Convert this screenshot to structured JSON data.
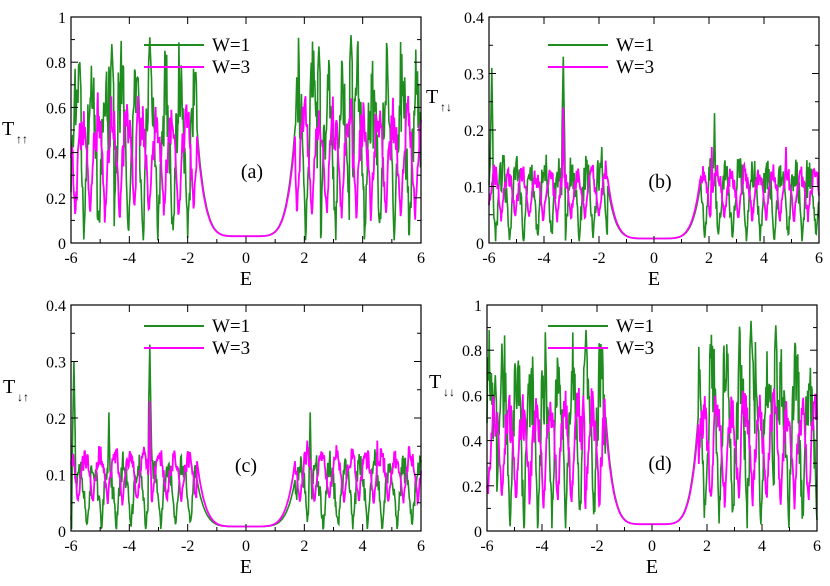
{
  "chart_data": [
    {
      "type": "line",
      "panel_label": "(a)",
      "ylabel_main": "T",
      "ylabel_sub": "↑↑",
      "xlabel": "E",
      "xlim": [
        -6,
        6
      ],
      "ylim": [
        0,
        1
      ],
      "x_ticks": [
        -6,
        -4,
        -2,
        0,
        2,
        4,
        6
      ],
      "x_tick_labels": [
        "-6",
        "-4",
        "-2",
        "0",
        "2",
        "4",
        "6"
      ],
      "y_ticks": [
        0,
        0.2,
        0.4,
        0.6,
        0.8,
        1
      ],
      "y_tick_labels": [
        "0",
        "0.2",
        "0.4",
        "0.6",
        "0.8",
        "1"
      ],
      "legend": [
        {
          "name": "W=1",
          "color": "#1e8c1e"
        },
        {
          "name": "W=3",
          "color": "#ff00ff"
        }
      ],
      "band_edge": 1.7,
      "gap_floor": 0.03,
      "series": [
        {
          "name": "W=1",
          "color": "#1e8c1e",
          "base": 0.45,
          "amp": 0.42,
          "freq": 6.2,
          "floor": 0.02,
          "peaks": [
            [
              -5.7,
              0.8
            ],
            [
              -3.3,
              0.91
            ],
            [
              3.6,
              0.92
            ],
            [
              -4.6,
              0.88
            ],
            [
              2.5,
              0.87
            ]
          ]
        },
        {
          "name": "W=3",
          "color": "#ff00ff",
          "base": 0.42,
          "amp": 0.22,
          "freq": 6.2,
          "floor": 0.12,
          "peaks": [
            [
              -3.7,
              0.65
            ],
            [
              -5.7,
              0.53
            ],
            [
              3.6,
              0.64
            ]
          ]
        }
      ]
    },
    {
      "type": "line",
      "panel_label": "(b)",
      "ylabel_main": "T",
      "ylabel_sub": "↑↓",
      "xlabel": "E",
      "xlim": [
        -6,
        6
      ],
      "ylim": [
        0,
        0.4
      ],
      "x_ticks": [
        -6,
        -4,
        -2,
        0,
        2,
        4,
        6
      ],
      "x_tick_labels": [
        "-6",
        "-4",
        "-2",
        "0",
        "2",
        "4",
        "6"
      ],
      "y_ticks": [
        0,
        0.1,
        0.2,
        0.3,
        0.4
      ],
      "y_tick_labels": [
        "0",
        "0.1",
        "0.2",
        "0.3",
        "0.4"
      ],
      "legend": [
        {
          "name": "W=1",
          "color": "#1e8c1e"
        },
        {
          "name": "W=3",
          "color": "#ff00ff"
        }
      ],
      "band_edge": 1.7,
      "gap_floor": 0.008,
      "series": [
        {
          "name": "W=1",
          "color": "#1e8c1e",
          "base": 0.09,
          "amp": 0.07,
          "freq": 6.2,
          "floor": 0.005,
          "peaks": [
            [
              -5.9,
              0.31
            ],
            [
              -3.3,
              0.33
            ],
            [
              2.2,
              0.23
            ],
            [
              -1.9,
              0.17
            ]
          ]
        },
        {
          "name": "W=3",
          "color": "#ff00ff",
          "base": 0.1,
          "amp": 0.04,
          "freq": 6.2,
          "floor": 0.04,
          "peaks": [
            [
              -3.3,
              0.24
            ],
            [
              2.1,
              0.17
            ],
            [
              4.8,
              0.17
            ]
          ]
        }
      ]
    },
    {
      "type": "line",
      "panel_label": "(c)",
      "ylabel_main": "T",
      "ylabel_sub": "↓↑",
      "xlabel": "E",
      "xlim": [
        -6,
        6
      ],
      "ylim": [
        0,
        0.4
      ],
      "x_ticks": [
        -6,
        -4,
        -2,
        0,
        2,
        4,
        6
      ],
      "x_tick_labels": [
        "-6",
        "-4",
        "-2",
        "0",
        "2",
        "4",
        "6"
      ],
      "y_ticks": [
        0,
        0.1,
        0.2,
        0.3,
        0.4
      ],
      "y_tick_labels": [
        "0",
        "0.1",
        "0.2",
        "0.3",
        "0.4"
      ],
      "legend": [
        {
          "name": "W=1",
          "color": "#1e8c1e"
        },
        {
          "name": "W=3",
          "color": "#ff00ff"
        }
      ],
      "band_edge": 1.7,
      "gap_floor": 0.008,
      "series": [
        {
          "name": "W=1",
          "color": "#1e8c1e",
          "base": 0.08,
          "amp": 0.06,
          "freq": 6.2,
          "floor": 0.005,
          "peaks": [
            [
              -5.9,
              0.3
            ],
            [
              -3.3,
              0.33
            ],
            [
              2.2,
              0.21
            ],
            [
              -4.7,
              0.21
            ]
          ]
        },
        {
          "name": "W=3",
          "color": "#ff00ff",
          "base": 0.11,
          "amp": 0.04,
          "freq": 6.2,
          "floor": 0.05,
          "peaks": [
            [
              -3.3,
              0.23
            ],
            [
              2.1,
              0.16
            ],
            [
              4.5,
              0.16
            ]
          ]
        }
      ]
    },
    {
      "type": "line",
      "panel_label": "(d)",
      "ylabel_main": "T",
      "ylabel_sub": "↓↓",
      "xlabel": "E",
      "xlim": [
        -6,
        6
      ],
      "ylim": [
        0,
        1
      ],
      "x_ticks": [
        -6,
        -4,
        -2,
        0,
        2,
        4,
        6
      ],
      "x_tick_labels": [
        "-6",
        "-4",
        "-2",
        "0",
        "2",
        "4",
        "6"
      ],
      "y_ticks": [
        0,
        0.2,
        0.4,
        0.6,
        0.8,
        1
      ],
      "y_tick_labels": [
        "0",
        "0.2",
        "0.4",
        "0.6",
        "0.8",
        "1"
      ],
      "legend": [
        {
          "name": "W=1",
          "color": "#1e8c1e"
        },
        {
          "name": "W=3",
          "color": "#ff00ff"
        }
      ],
      "band_edge": 1.7,
      "gap_floor": 0.03,
      "series": [
        {
          "name": "W=1",
          "color": "#1e8c1e",
          "base": 0.45,
          "amp": 0.42,
          "freq": 6.2,
          "floor": 0.02,
          "peaks": [
            [
              -2.4,
              0.89
            ],
            [
              3.6,
              0.93
            ],
            [
              4.5,
              0.91
            ],
            [
              -5.7,
              0.69
            ]
          ]
        },
        {
          "name": "W=3",
          "color": "#ff00ff",
          "base": 0.42,
          "amp": 0.22,
          "freq": 6.2,
          "floor": 0.12,
          "peaks": [
            [
              -2.5,
              0.6
            ],
            [
              3.3,
              0.62
            ],
            [
              2.3,
              0.6
            ]
          ]
        }
      ]
    }
  ]
}
